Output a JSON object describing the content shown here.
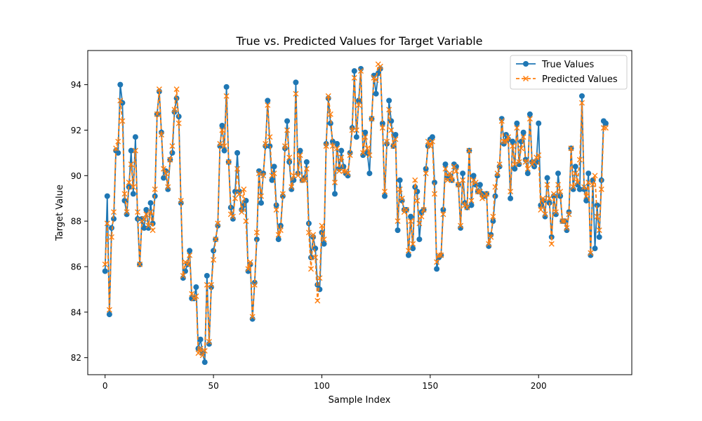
{
  "chart_data": {
    "type": "line",
    "title": "True vs. Predicted Values for Target Variable",
    "xlabel": "Sample Index",
    "ylabel": "Target Value",
    "xlim": [
      -8,
      243
    ],
    "ylim": [
      81.25,
      95.5
    ],
    "xticks": [
      0,
      50,
      100,
      150,
      200
    ],
    "yticks": [
      82,
      84,
      86,
      88,
      90,
      92,
      94
    ],
    "legend_position": "top-right",
    "grid": false,
    "series": [
      {
        "name": "True Values",
        "color": "#1f77b4",
        "marker": "circle",
        "linestyle": "solid",
        "values": [
          85.8,
          89.1,
          83.9,
          87.7,
          88.1,
          91.1,
          91.0,
          94.0,
          93.2,
          88.9,
          88.3,
          89.5,
          91.1,
          89.2,
          91.7,
          88.1,
          86.1,
          88.1,
          87.7,
          88.5,
          87.7,
          88.8,
          87.9,
          89.1,
          92.7,
          93.7,
          91.9,
          89.9,
          90.2,
          89.4,
          90.7,
          91.0,
          92.8,
          93.4,
          92.6,
          88.8,
          85.5,
          85.8,
          86.1,
          86.7,
          84.6,
          84.6,
          85.1,
          82.4,
          82.8,
          82.2,
          81.8,
          85.6,
          82.6,
          85.1,
          86.7,
          87.2,
          87.8,
          91.3,
          92.2,
          91.1,
          93.9,
          90.6,
          88.6,
          88.1,
          89.3,
          91.0,
          89.3,
          88.5,
          88.7,
          88.9,
          85.8,
          86.1,
          83.7,
          85.3,
          87.2,
          90.2,
          88.8,
          90.1,
          91.3,
          93.3,
          91.3,
          89.8,
          90.4,
          88.7,
          87.2,
          87.8,
          89.1,
          91.2,
          92.4,
          90.6,
          89.4,
          89.8,
          94.1,
          90.1,
          91.1,
          89.8,
          89.9,
          90.6,
          87.9,
          86.4,
          87.3,
          86.8,
          85.2,
          85.0,
          87.5,
          87.0,
          91.4,
          93.4,
          92.3,
          91.5,
          89.2,
          91.4,
          90.3,
          91.1,
          90.4,
          90.1,
          90.0,
          91.0,
          92.1,
          94.6,
          91.7,
          93.3,
          94.7,
          90.9,
          91.9,
          91.0,
          90.1,
          92.5,
          94.4,
          93.6,
          94.5,
          94.7,
          92.3,
          89.1,
          91.4,
          93.3,
          92.4,
          91.3,
          91.8,
          87.6,
          89.8,
          88.9,
          88.5,
          88.5,
          86.5,
          88.2,
          86.8,
          89.5,
          89.3,
          87.2,
          88.4,
          88.5,
          90.3,
          91.3,
          91.6,
          91.7,
          89.7,
          85.9,
          86.4,
          86.5,
          88.5,
          90.5,
          89.9,
          90.0,
          89.8,
          90.5,
          90.4,
          89.6,
          87.7,
          90.1,
          88.8,
          88.6,
          91.1,
          88.7,
          90.0,
          89.6,
          89.3,
          89.6,
          89.2,
          89.1,
          89.2,
          86.9,
          87.4,
          88.0,
          89.1,
          90.0,
          90.4,
          92.5,
          91.4,
          91.8,
          91.6,
          89.0,
          91.5,
          90.3,
          92.3,
          90.5,
          91.5,
          91.9,
          90.7,
          90.1,
          92.7,
          90.6,
          90.4,
          90.6,
          92.3,
          88.7,
          88.9,
          88.2,
          89.9,
          88.8,
          87.3,
          89.1,
          88.3,
          90.1,
          89.1,
          88.0,
          88.0,
          87.6,
          88.4,
          91.2,
          89.4,
          90.4,
          89.6,
          89.4,
          93.5,
          89.4,
          88.9,
          90.1,
          86.5,
          89.8,
          86.8,
          88.7,
          87.3,
          89.8,
          92.4,
          92.3
        ]
      },
      {
        "name": "Predicted Values",
        "color": "#ff7f0e",
        "marker": "x",
        "linestyle": "dashed",
        "values": [
          86.1,
          87.9,
          84.1,
          87.3,
          88.4,
          91.2,
          91.5,
          93.3,
          92.4,
          89.2,
          88.4,
          89.7,
          90.5,
          89.5,
          91.1,
          88.4,
          86.1,
          88.0,
          88.1,
          88.3,
          87.8,
          88.4,
          87.6,
          89.4,
          92.7,
          93.8,
          91.8,
          90.3,
          90.1,
          89.5,
          90.7,
          91.3,
          92.9,
          93.8,
          92.3,
          88.9,
          85.6,
          86.2,
          86.1,
          86.5,
          84.8,
          84.6,
          84.7,
          82.2,
          82.4,
          82.1,
          82.3,
          85.2,
          82.7,
          85.2,
          86.3,
          87.2,
          87.9,
          91.4,
          92.0,
          91.3,
          93.5,
          90.6,
          88.3,
          88.2,
          89.0,
          90.3,
          89.2,
          88.4,
          89.4,
          88.0,
          85.9,
          86.2,
          83.8,
          85.2,
          87.5,
          90.1,
          89.1,
          90.0,
          91.4,
          93.1,
          91.7,
          90.0,
          90.1,
          88.5,
          87.4,
          87.6,
          89.2,
          91.3,
          92.0,
          90.8,
          89.5,
          90.0,
          93.6,
          90.0,
          90.9,
          89.8,
          89.8,
          90.3,
          87.5,
          85.9,
          87.4,
          86.4,
          84.5,
          85.5,
          87.8,
          87.2,
          91.3,
          93.5,
          92.7,
          91.3,
          89.7,
          91.2,
          90.2,
          90.8,
          90.2,
          90.2,
          90.1,
          90.9,
          92.0,
          94.3,
          92.0,
          93.1,
          94.6,
          91.0,
          91.7,
          91.2,
          90.9,
          92.5,
          94.3,
          94.2,
          94.9,
          94.8,
          92.1,
          89.3,
          91.5,
          92.9,
          92.0,
          91.3,
          91.6,
          88.0,
          89.4,
          89.0,
          88.4,
          88.5,
          86.7,
          88.0,
          87.0,
          89.8,
          88.9,
          87.9,
          88.2,
          88.5,
          90.1,
          91.5,
          91.3,
          91.5,
          89.2,
          86.2,
          86.5,
          86.5,
          88.3,
          90.3,
          89.8,
          90.1,
          89.8,
          90.4,
          90.2,
          89.6,
          87.8,
          89.8,
          88.7,
          88.6,
          91.1,
          88.9,
          89.8,
          89.7,
          89.3,
          89.3,
          89.0,
          89.1,
          89.2,
          87.0,
          87.3,
          88.2,
          89.5,
          90.1,
          90.5,
          92.4,
          91.5,
          91.5,
          91.7,
          89.3,
          91.3,
          90.5,
          92.1,
          90.6,
          91.2,
          91.7,
          90.6,
          90.3,
          92.5,
          90.5,
          90.6,
          90.8,
          90.9,
          88.5,
          89.0,
          88.3,
          89.6,
          89.0,
          87.0,
          89.2,
          88.4,
          89.6,
          89.3,
          88.0,
          88.0,
          87.7,
          88.3,
          91.2,
          89.5,
          90.1,
          89.7,
          90.7,
          93.2,
          89.5,
          89.1,
          89.7,
          86.6,
          89.6,
          90.0,
          88.2,
          87.6,
          89.4,
          92.1,
          92.1
        ]
      }
    ]
  }
}
